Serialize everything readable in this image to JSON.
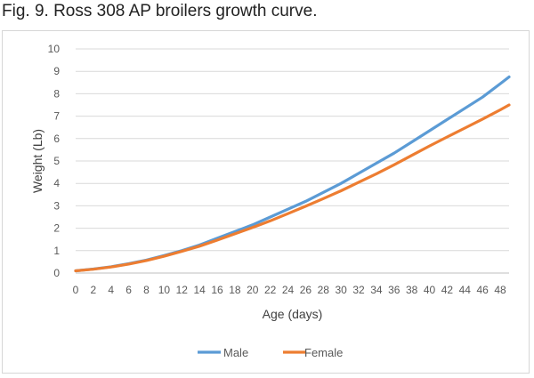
{
  "caption": "Fig. 9. Ross 308 AP broilers growth curve.",
  "chart_data": {
    "type": "line",
    "title": "",
    "xlabel": "Age (days)",
    "ylabel": "Weight (Lb)",
    "xlim": [
      0,
      49
    ],
    "ylim": [
      0,
      10
    ],
    "x_ticks": [
      0,
      2,
      4,
      6,
      8,
      10,
      12,
      14,
      16,
      18,
      20,
      22,
      24,
      26,
      28,
      30,
      32,
      34,
      36,
      38,
      40,
      42,
      44,
      46,
      48
    ],
    "y_ticks": [
      0,
      1,
      2,
      3,
      4,
      5,
      6,
      7,
      8,
      9,
      10
    ],
    "grid": "horizontal",
    "legend": "bottom",
    "x": [
      0,
      2,
      4,
      6,
      8,
      10,
      12,
      14,
      16,
      18,
      20,
      22,
      24,
      26,
      28,
      30,
      32,
      34,
      36,
      38,
      40,
      42,
      44,
      46,
      48,
      49
    ],
    "series": [
      {
        "name": "Male",
        "color": "#5B9BD5",
        "values": [
          0.1,
          0.18,
          0.28,
          0.42,
          0.58,
          0.78,
          1.0,
          1.25,
          1.55,
          1.85,
          2.15,
          2.5,
          2.85,
          3.2,
          3.6,
          4.0,
          4.45,
          4.9,
          5.35,
          5.85,
          6.35,
          6.85,
          7.35,
          7.85,
          8.45,
          8.75
        ]
      },
      {
        "name": "Female",
        "color": "#ED7D31",
        "values": [
          0.1,
          0.17,
          0.27,
          0.4,
          0.56,
          0.75,
          0.97,
          1.2,
          1.47,
          1.75,
          2.03,
          2.33,
          2.65,
          2.98,
          3.32,
          3.67,
          4.05,
          4.43,
          4.83,
          5.25,
          5.67,
          6.07,
          6.47,
          6.87,
          7.28,
          7.5
        ]
      }
    ]
  }
}
